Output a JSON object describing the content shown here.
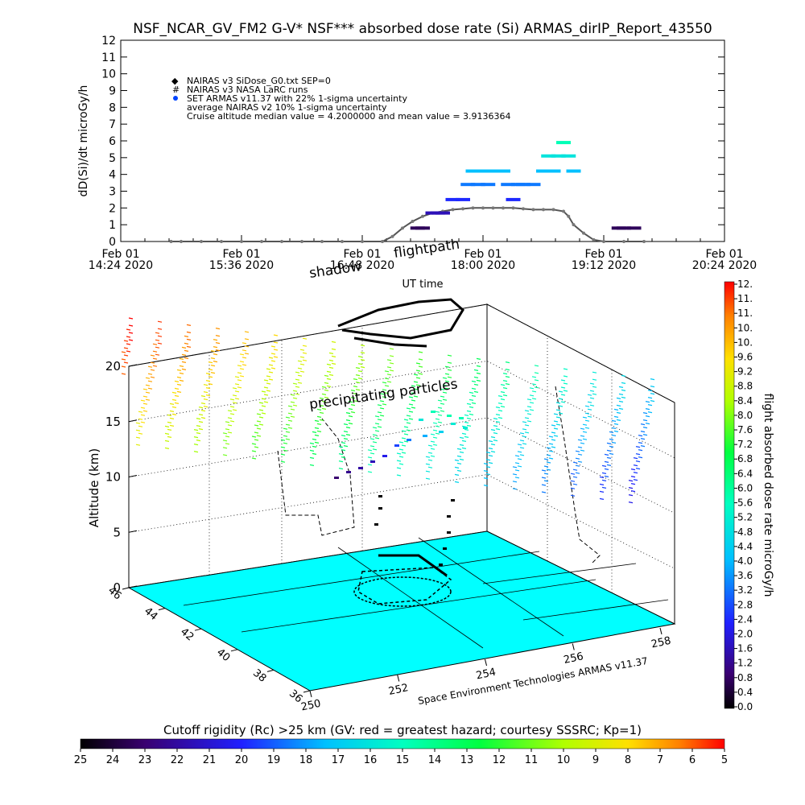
{
  "chart_data": [
    {
      "type": "scatter",
      "title": "NSF_NCAR_GV_FM2 G-V* NSF*** absorbed dose rate (Si) ARMAS_dirIP_Report_43550",
      "ylabel": "dD(Si)/dt microGy/h",
      "xlabel": "UT time",
      "ylim": [
        0,
        12
      ],
      "yticks": [
        "0",
        "1",
        "2",
        "3",
        "4",
        "5",
        "6",
        "7",
        "8",
        "9",
        "10",
        "11",
        "12"
      ],
      "xlim_hours": [
        14.4,
        20.4
      ],
      "xticks": [
        {
          "h": 14.4,
          "line1": "Feb 01",
          "line2": "14:24 2020"
        },
        {
          "h": 15.6,
          "line1": "Feb 01",
          "line2": "15:36 2020"
        },
        {
          "h": 16.8,
          "line1": "Feb 01",
          "line2": "16:48 2020"
        },
        {
          "h": 18.0,
          "line1": "Feb 01",
          "line2": "18:00 2020"
        },
        {
          "h": 19.2,
          "line1": "Feb 01",
          "line2": "19:12 2020"
        },
        {
          "h": 20.4,
          "line1": "Feb 01",
          "line2": "20:24 2020"
        }
      ],
      "legend": [
        "NAIRAS v3 SiDose_G0.txt SEP=0",
        "NAIRAS v3 NASA LaRC runs",
        "SET ARMAS v11.37 with 22% 1-sigma uncertainty",
        "average NAIRAS v2 10% 1-sigma uncertainty",
        "Cruise altitude median value = 4.2000000 and mean value = 3.9136364"
      ],
      "series": [
        {
          "name": "NAIRAS v3 SiDose_G0.txt SEP=0",
          "x": [
            14.9,
            15.0,
            15.2,
            15.4,
            15.6,
            15.8,
            16.0,
            16.2,
            16.4,
            16.6,
            16.8,
            17.0,
            17.1,
            17.2,
            17.3,
            17.4,
            17.5,
            17.6,
            17.7,
            17.8,
            17.9,
            18.0,
            18.1,
            18.2,
            18.3,
            18.4,
            18.5,
            18.6,
            18.7,
            18.8,
            18.85,
            18.9,
            19.0,
            19.1,
            19.2,
            19.4,
            19.6
          ],
          "y": [
            0,
            0,
            0,
            0,
            0,
            0,
            0,
            0,
            0,
            0,
            0,
            0,
            0.3,
            0.8,
            1.2,
            1.5,
            1.7,
            1.8,
            1.9,
            1.95,
            2,
            2,
            2,
            2,
            2,
            1.95,
            1.9,
            1.9,
            1.9,
            1.8,
            1.5,
            1.0,
            0.5,
            0.1,
            0,
            0,
            0
          ]
        },
        {
          "name": "SET ARMAS v11.37 with 22% 1-sigma uncertainty",
          "x": [
            17.35,
            17.4,
            17.5,
            17.55,
            17.6,
            17.7,
            17.8,
            17.85,
            17.9,
            17.95,
            18.0,
            18.05,
            18.1,
            18.2,
            18.25,
            18.3,
            18.35,
            18.4,
            18.5,
            18.6,
            18.65,
            18.7,
            18.75,
            18.8,
            18.85,
            18.9,
            19.35,
            19.4,
            19.5
          ],
          "y": [
            0.8,
            0.8,
            1.7,
            1.7,
            1.7,
            2.5,
            2.5,
            3.4,
            4.2,
            3.4,
            4.2,
            3.4,
            4.2,
            4.2,
            3.4,
            2.5,
            3.4,
            3.4,
            3.4,
            4.2,
            5.1,
            4.2,
            5.1,
            5.9,
            5.1,
            4.2,
            0.8,
            0.8,
            0.8
          ]
        }
      ]
    },
    {
      "type": "scatter",
      "xlabel": "",
      "ylabel": "Altitude (km)",
      "zticks": [
        "0",
        "5",
        "10",
        "15",
        "20"
      ],
      "lat_ticks": [
        "36",
        "38",
        "40",
        "42",
        "44",
        "46"
      ],
      "lon_ticks": [
        "250",
        "252",
        "254",
        "256",
        "258"
      ],
      "annotations": [
        "shadow",
        "flightpath",
        "precipitating particles",
        "Space Environment Technologies ARMAS v11.37"
      ],
      "colorbar": {
        "label": "flight absorbed dose rate microGy/h",
        "ticks": [
          "0.0",
          "0.4",
          "0.8",
          "1.2",
          "1.6",
          "2.0",
          "2.4",
          "2.8",
          "3.2",
          "3.6",
          "4.0",
          "4.4",
          "4.8",
          "5.2",
          "5.6",
          "6.0",
          "6.4",
          "6.8",
          "7.2",
          "7.6",
          "8.0",
          "8.4",
          "8.8",
          "9.2",
          "9.6",
          "10.",
          "10.",
          "11.",
          "11.",
          "12."
        ]
      },
      "cutoff_bar": {
        "title": "Cutoff rigidity (Rc) >25 km (GV: red = greatest hazard; courtesy SSSRC; Kp=1)",
        "ticks": [
          "25",
          "24",
          "23",
          "22",
          "21",
          "20",
          "19",
          "18",
          "17",
          "16",
          "15",
          "14",
          "13",
          "12",
          "11",
          "10",
          "9",
          "8",
          "7",
          "6",
          "5"
        ]
      }
    }
  ],
  "colors": {
    "background": "#ffffff",
    "ground": "#00ffff",
    "axis": "#000000"
  }
}
